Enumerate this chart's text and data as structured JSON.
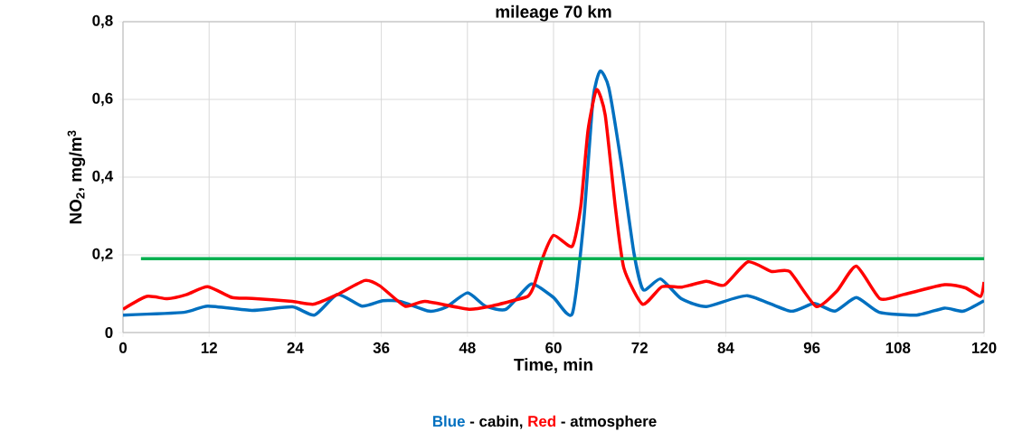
{
  "chart_data": {
    "type": "line",
    "title": "mileage 70 km",
    "xlabel": "Time, min",
    "ylabel": "NO$_{2}$,  mg/m$^{3}$",
    "annotations": [
      "Blue",
      "- cabin,",
      "Red",
      "- atmosphere"
    ],
    "xlim": [
      0,
      120
    ],
    "xticks": [
      0,
      12,
      24,
      36,
      48,
      60,
      72,
      84,
      96,
      108,
      120
    ],
    "ylim": [
      0,
      0.8
    ],
    "yticks": [
      0,
      {
        "value": 0.2,
        "label": "0,2"
      },
      {
        "value": 0.4,
        "label": "0,4"
      },
      {
        "value": 0.6,
        "label": "0,6"
      },
      {
        "value": 0.8,
        "label": "0,8"
      }
    ],
    "grid": true,
    "marker": "none",
    "line_style": "solid",
    "series": [
      {
        "color": "#0070c0",
        "x": [
          0,
          8.5,
          11.8,
          18,
          23.6,
          26.7,
          29.9,
          33.3,
          36.2,
          38.7,
          42.7,
          45,
          48,
          50.5,
          53.4,
          56.9,
          60,
          62.6,
          64.2,
          65.5,
          66.5,
          67.7,
          69.4,
          71.2,
          72.5,
          74.9,
          77.8,
          81.3,
          87,
          93,
          96.3,
          99.2,
          102.2,
          105.4,
          110.6,
          114.5,
          117.1,
          120
        ],
        "values": [
          0.045,
          0.052,
          0.068,
          0.057,
          0.066,
          0.045,
          0.098,
          0.068,
          0.082,
          0.08,
          0.055,
          0.065,
          0.102,
          0.068,
          0.06,
          0.125,
          0.09,
          0.048,
          0.285,
          0.6,
          0.673,
          0.63,
          0.44,
          0.205,
          0.11,
          0.138,
          0.087,
          0.067,
          0.095,
          0.055,
          0.075,
          0.055,
          0.09,
          0.052,
          0.045,
          0.063,
          0.055,
          0.082
        ]
      },
      {
        "color": "#ff0000",
        "x": [
          0,
          3.3,
          6.2,
          8.9,
          11.8,
          15.2,
          18,
          23.6,
          26.6,
          29.9,
          33.7,
          35.8,
          39.3,
          42.1,
          48.2,
          51.3,
          54.3,
          56.4,
          57.2,
          58.5,
          60,
          62.6,
          63.8,
          64.8,
          66,
          67.2,
          68.6,
          69.8,
          72.4,
          75.1,
          77.9,
          81.3,
          83.8,
          87.1,
          90.4,
          92.9,
          96.6,
          99.5,
          102.2,
          105.5,
          108.8,
          114.5,
          117.4,
          119.5,
          120
        ],
        "values": [
          0.06,
          0.093,
          0.087,
          0.098,
          0.118,
          0.09,
          0.088,
          0.08,
          0.073,
          0.098,
          0.134,
          0.12,
          0.068,
          0.08,
          0.06,
          0.068,
          0.082,
          0.093,
          0.117,
          0.193,
          0.25,
          0.222,
          0.325,
          0.52,
          0.625,
          0.56,
          0.325,
          0.166,
          0.073,
          0.118,
          0.117,
          0.132,
          0.122,
          0.182,
          0.157,
          0.157,
          0.067,
          0.107,
          0.171,
          0.087,
          0.098,
          0.123,
          0.115,
          0.093,
          0.13
        ]
      },
      {
        "color": "#00b050",
        "x": [
          2.5,
          120
        ],
        "values": [
          0.19,
          0.19
        ]
      }
    ]
  }
}
